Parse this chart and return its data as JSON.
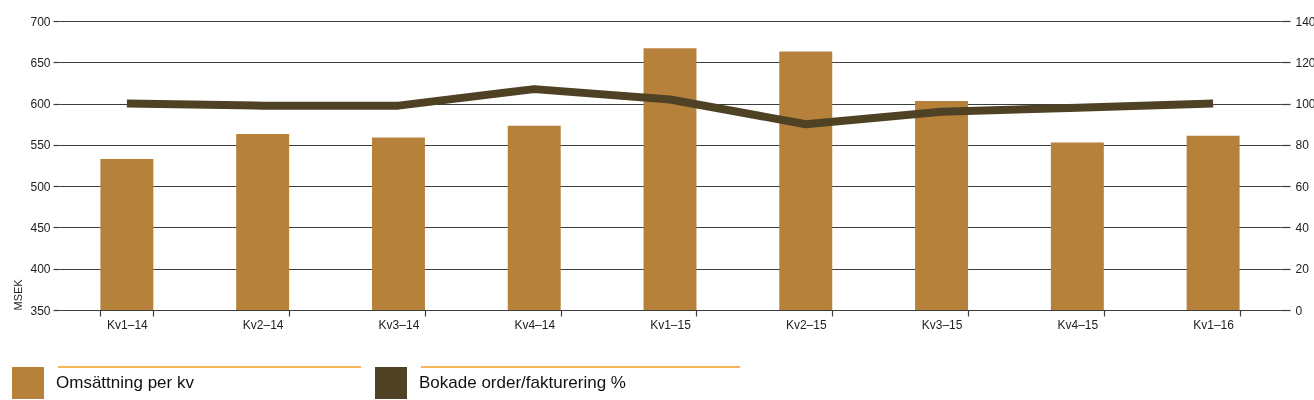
{
  "chart_data": {
    "type": "bar",
    "categories": [
      "Kv1–14",
      "Kv2–14",
      "Kv3–14",
      "Kv4–14",
      "Kv1–15",
      "Kv2–15",
      "Kv3–15",
      "Kv4–15",
      "Kv1–16"
    ],
    "ylabel": "MSEK",
    "series": [
      {
        "name": "Omsättning per kv",
        "color": "#b5813b",
        "values": [
          533,
          563,
          559,
          573,
          667,
          663,
          603,
          553,
          561
        ]
      },
      {
        "name": "Bokade order/fakturering %",
        "type": "line",
        "axis": "y2",
        "color": "#4f4124",
        "values": [
          100,
          99,
          99,
          107,
          102,
          90,
          96,
          98,
          100
        ]
      }
    ],
    "ylim": [
      350,
      700
    ],
    "yticks": [
      350,
      400,
      450,
      500,
      550,
      600,
      650,
      700
    ],
    "y2lim": [
      0,
      140
    ],
    "y2ticks": [
      0,
      20,
      40,
      60,
      80,
      100,
      120,
      140
    ],
    "grid": "y",
    "legend": "bottom left"
  }
}
